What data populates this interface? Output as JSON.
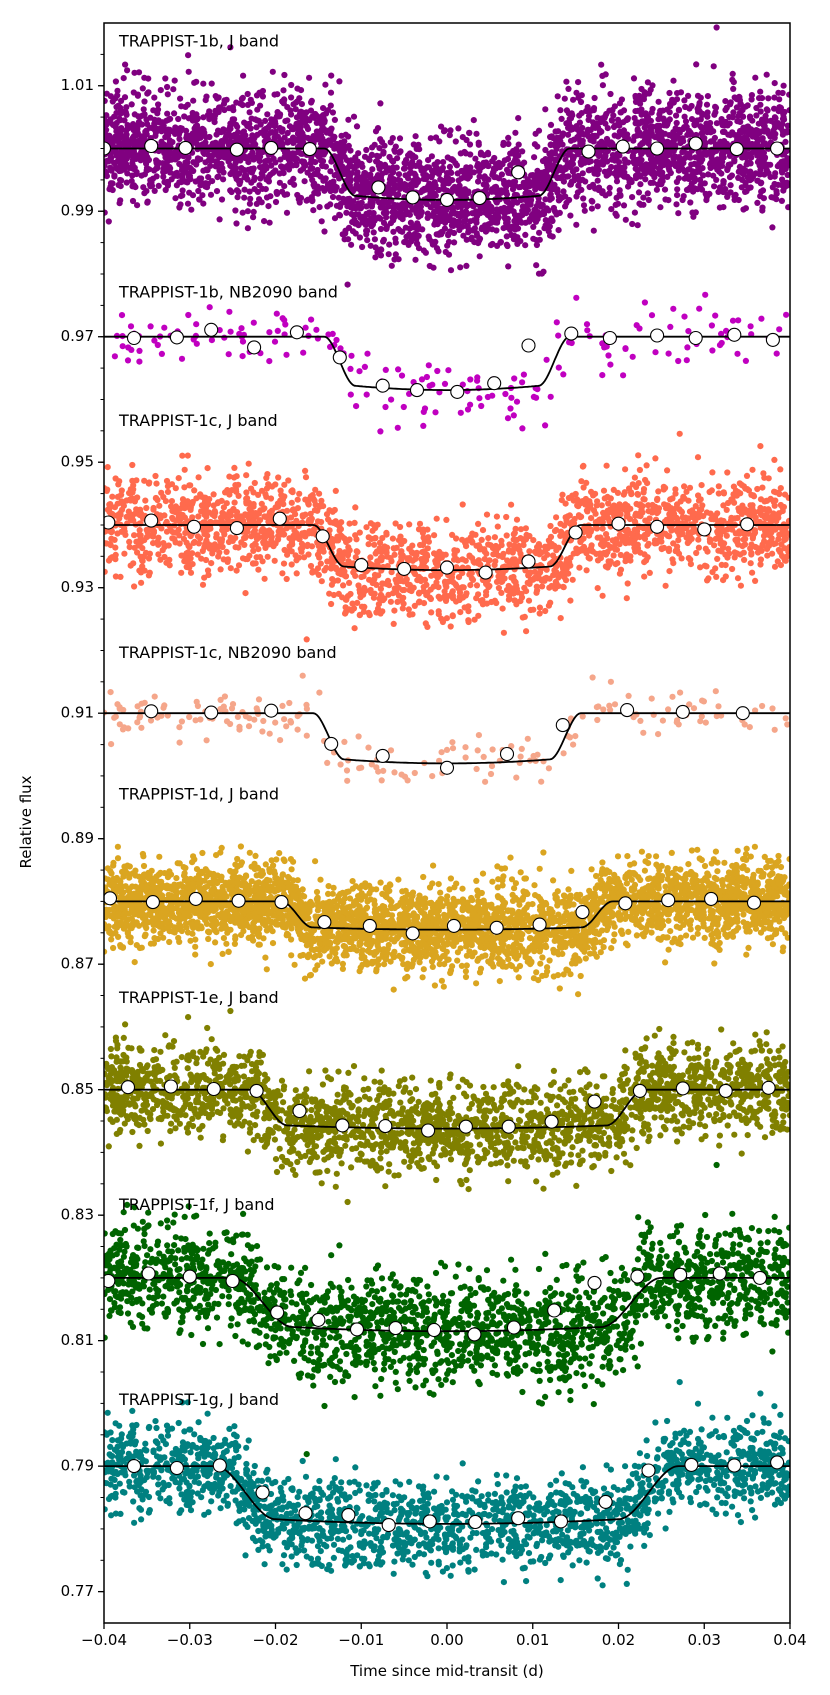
{
  "chart_data": {
    "type": "scatter",
    "xlabel": "Time since mid-transit (d)",
    "ylabel": "Relative flux",
    "xlim": [
      -0.04,
      0.04
    ],
    "ylim": [
      0.765,
      1.02
    ],
    "x_ticks": [
      -0.04,
      -0.03,
      -0.02,
      -0.01,
      0.0,
      0.01,
      0.02,
      0.03,
      0.04
    ],
    "x_tick_labels": [
      "−0.04",
      "−0.03",
      "−0.02",
      "−0.01",
      "0.00",
      "0.01",
      "0.02",
      "0.03",
      "0.04"
    ],
    "y_ticks": [
      1.01,
      0.99,
      0.97,
      0.95,
      0.93,
      0.91,
      0.89,
      0.87,
      0.85,
      0.83,
      0.81,
      0.79,
      0.77
    ],
    "y_tick_labels": [
      "1.01",
      "0.99",
      "0.97",
      "0.95",
      "0.93",
      "0.91",
      "0.89",
      "0.87",
      "0.85",
      "0.83",
      "0.81",
      "0.79",
      "0.77"
    ],
    "grid": false,
    "series": [
      {
        "name": "TRAPPIST-1b, J band",
        "color": "#800080",
        "baseline": 1.0,
        "depth": 0.0082,
        "half_duration": 0.0125,
        "ingress": 0.0018,
        "scatter": 0.0045,
        "n_points": 3600,
        "label_y": 1.017,
        "binned_x": [
          -0.04,
          -0.0345,
          -0.0305,
          -0.0245,
          -0.0205,
          -0.016,
          -0.008,
          -0.004,
          0.0,
          0.0038,
          0.0083,
          0.0165,
          0.0205,
          0.0245,
          0.029,
          0.0338,
          0.0385
        ],
        "binned_y": [
          1.0,
          1.0004,
          1.0001,
          0.9998,
          1.0001,
          0.9999,
          0.9938,
          0.9922,
          0.9918,
          0.9921,
          0.9962,
          0.9995,
          1.0003,
          1.0,
          1.0008,
          0.9999,
          1.0
        ]
      },
      {
        "name": "TRAPPIST-1b, NB2090 band",
        "color": "#c000c0",
        "baseline": 0.97,
        "depth": 0.0085,
        "half_duration": 0.0125,
        "ingress": 0.0018,
        "scatter": 0.0028,
        "n_points": 190,
        "label_y": 0.977,
        "binned_x": [
          -0.0365,
          -0.0315,
          -0.0275,
          -0.0225,
          -0.0175,
          -0.0125,
          -0.0075,
          -0.0035,
          0.0012,
          0.0055,
          0.0095,
          0.0145,
          0.019,
          0.0245,
          0.029,
          0.0335,
          0.038
        ],
        "binned_y": [
          0.9698,
          0.9699,
          0.9711,
          0.9683,
          0.9707,
          0.9667,
          0.9622,
          0.9615,
          0.9612,
          0.9626,
          0.9686,
          0.9705,
          0.9698,
          0.9702,
          0.9698,
          0.9703,
          0.9695
        ]
      },
      {
        "name": "TRAPPIST-1c, J band",
        "color": "#ff6a4d",
        "baseline": 0.94,
        "depth": 0.0072,
        "half_duration": 0.0138,
        "ingress": 0.0018,
        "scatter": 0.0038,
        "n_points": 2200,
        "label_y": 0.9565,
        "binned_x": [
          -0.0395,
          -0.0345,
          -0.0295,
          -0.0245,
          -0.0195,
          -0.0145,
          -0.01,
          -0.005,
          0.0,
          0.0045,
          0.0095,
          0.015,
          0.02,
          0.0245,
          0.03,
          0.035
        ],
        "binned_y": [
          0.9404,
          0.9407,
          0.9397,
          0.9395,
          0.941,
          0.9382,
          0.9336,
          0.933,
          0.9332,
          0.9324,
          0.9342,
          0.9388,
          0.9402,
          0.9397,
          0.9393,
          0.9401
        ]
      },
      {
        "name": "TRAPPIST-1c, NB2090 band",
        "color": "#f5a68a",
        "baseline": 0.91,
        "depth": 0.008,
        "half_duration": 0.0138,
        "ingress": 0.0018,
        "scatter": 0.0022,
        "n_points": 200,
        "label_y": 0.9195,
        "binned_x": [
          -0.0345,
          -0.0275,
          -0.0205,
          -0.0135,
          -0.0075,
          0.0,
          0.007,
          0.0135,
          0.021,
          0.0275,
          0.0345
        ],
        "binned_y": [
          0.9103,
          0.9101,
          0.9104,
          0.9051,
          0.9032,
          0.9013,
          0.9035,
          0.9081,
          0.9105,
          0.9102,
          0.91
        ]
      },
      {
        "name": "TRAPPIST-1d, J band",
        "color": "#daa520",
        "baseline": 0.88,
        "depth": 0.0045,
        "half_duration": 0.0175,
        "ingress": 0.0018,
        "scatter": 0.0032,
        "n_points": 3800,
        "label_y": 0.897,
        "binned_x": [
          -0.0393,
          -0.0343,
          -0.0293,
          -0.0243,
          -0.0193,
          -0.0143,
          -0.009,
          -0.004,
          0.0008,
          0.0058,
          0.0108,
          0.0158,
          0.0208,
          0.0258,
          0.0308,
          0.0358
        ],
        "binned_y": [
          0.8805,
          0.8799,
          0.8804,
          0.8801,
          0.8799,
          0.8767,
          0.8761,
          0.8749,
          0.8761,
          0.8758,
          0.8763,
          0.8783,
          0.8797,
          0.8802,
          0.8804,
          0.8798
        ]
      },
      {
        "name": "TRAPPIST-1e, J band",
        "color": "#808000",
        "baseline": 0.85,
        "depth": 0.0062,
        "half_duration": 0.0208,
        "ingress": 0.0022,
        "scatter": 0.0035,
        "n_points": 2400,
        "label_y": 0.8645,
        "binned_x": [
          -0.0372,
          -0.0322,
          -0.0272,
          -0.0222,
          -0.0172,
          -0.0122,
          -0.0072,
          -0.0022,
          0.0022,
          0.0072,
          0.0122,
          0.0172,
          0.0225,
          0.0275,
          0.0325,
          0.0375
        ],
        "binned_y": [
          0.8504,
          0.8505,
          0.8501,
          0.8498,
          0.8466,
          0.8443,
          0.8442,
          0.8435,
          0.8441,
          0.8441,
          0.8449,
          0.8481,
          0.8498,
          0.8502,
          0.8498,
          0.8503
        ]
      },
      {
        "name": "TRAPPIST-1f, J band",
        "color": "#006400",
        "baseline": 0.82,
        "depth": 0.0085,
        "half_duration": 0.0215,
        "ingress": 0.0035,
        "scatter": 0.0042,
        "n_points": 2200,
        "label_y": 0.8315,
        "binned_x": [
          -0.0395,
          -0.0348,
          -0.03,
          -0.025,
          -0.0198,
          -0.015,
          -0.0105,
          -0.006,
          -0.0015,
          0.0032,
          0.0078,
          0.0125,
          0.0172,
          0.0222,
          0.0272,
          0.0318,
          0.0365
        ],
        "binned_y": [
          0.8195,
          0.8207,
          0.8202,
          0.8195,
          0.8145,
          0.8133,
          0.8118,
          0.812,
          0.8117,
          0.811,
          0.8121,
          0.8148,
          0.8192,
          0.8202,
          0.8205,
          0.8207,
          0.82
        ]
      },
      {
        "name": "TRAPPIST-1g, J band",
        "color": "#008080",
        "baseline": 0.79,
        "depth": 0.0092,
        "half_duration": 0.0235,
        "ingress": 0.0035,
        "scatter": 0.0035,
        "n_points": 2000,
        "label_y": 0.8005,
        "binned_x": [
          -0.0365,
          -0.0315,
          -0.0265,
          -0.0215,
          -0.0165,
          -0.0115,
          -0.0068,
          -0.002,
          0.0033,
          0.0083,
          0.0133,
          0.0185,
          0.0235,
          0.0285,
          0.0335,
          0.0385
        ],
        "binned_y": [
          0.79,
          0.7897,
          0.7901,
          0.7858,
          0.7825,
          0.7822,
          0.7806,
          0.7812,
          0.7811,
          0.7817,
          0.7812,
          0.7843,
          0.7893,
          0.7902,
          0.7901,
          0.7906
        ]
      }
    ]
  }
}
